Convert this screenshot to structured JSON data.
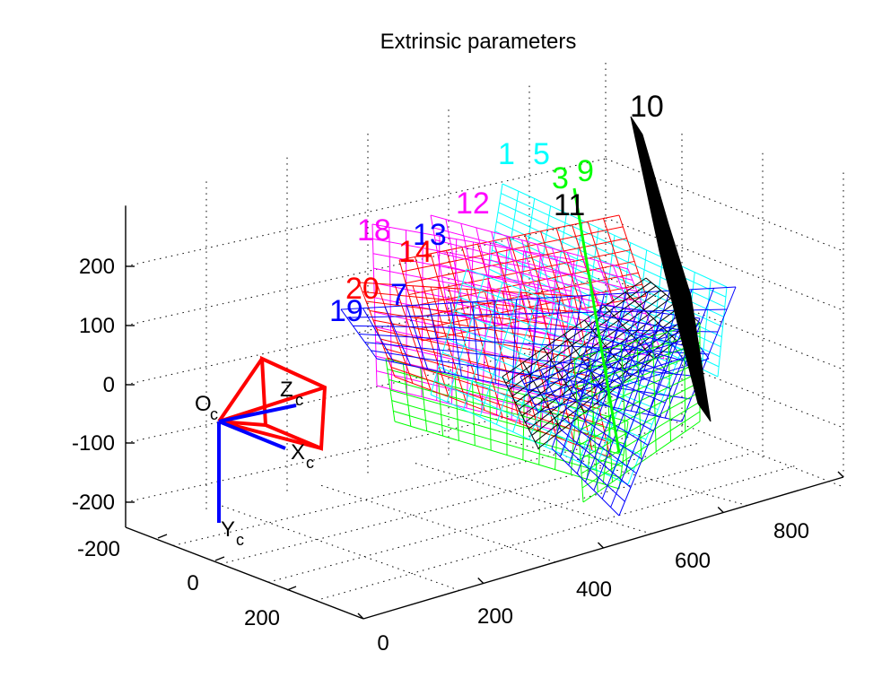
{
  "chart_data": {
    "type": "3d-plot",
    "title": "Extrinsic parameters",
    "z_ticks": [
      "200",
      "100",
      "0",
      "-100",
      "-200"
    ],
    "y_ticks": [
      "-200",
      "0",
      "200"
    ],
    "x_ticks": [
      "0",
      "200",
      "400",
      "600",
      "800"
    ],
    "grid": true,
    "camera": {
      "origin_label": "O",
      "origin_sub": "c",
      "x_label": "X",
      "x_sub": "c",
      "y_label": "Y",
      "y_sub": "c",
      "z_label": "Z",
      "z_sub": "c"
    },
    "boards": [
      {
        "label": "10",
        "color": "#000000"
      },
      {
        "label": "11",
        "color": "#000000"
      },
      {
        "label": "1",
        "color": "#00ffff"
      },
      {
        "label": "5",
        "color": "#00ffff"
      },
      {
        "label": "3",
        "color": "#00ff00"
      },
      {
        "label": "9",
        "color": "#00ff00"
      },
      {
        "label": "12",
        "color": "#ff00ff"
      },
      {
        "label": "18",
        "color": "#ff00ff"
      },
      {
        "label": "13",
        "color": "#0000ff"
      },
      {
        "label": "14",
        "color": "#ff0000"
      },
      {
        "label": "20",
        "color": "#ff0000"
      },
      {
        "label": "7",
        "color": "#0000ff"
      },
      {
        "label": "19",
        "color": "#0000ff"
      }
    ],
    "colors": {
      "camera_frustum": "#ff0000",
      "camera_axes": "#0000ff"
    }
  }
}
